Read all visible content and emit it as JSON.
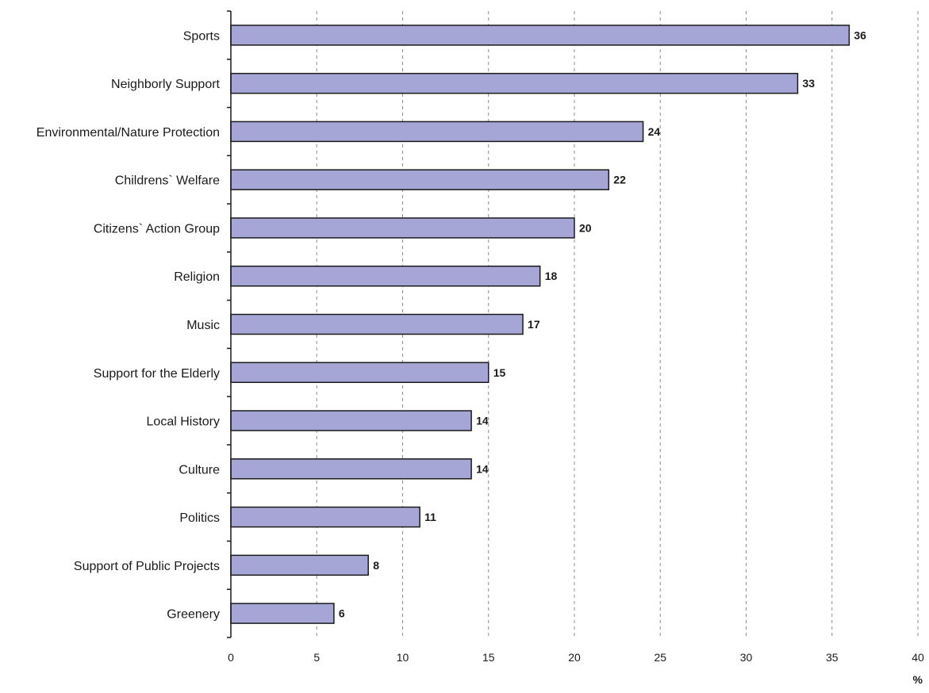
{
  "chart_data": {
    "type": "bar",
    "orientation": "horizontal",
    "categories": [
      "Sports",
      "Neighborly Support",
      "Environmental/Nature Protection",
      "Childrens` Welfare",
      "Citizens` Action Group",
      "Religion",
      "Music",
      "Support for the Elderly",
      "Local History",
      "Culture",
      "Politics",
      "Support of Public Projects",
      "Greenery"
    ],
    "values": [
      36,
      33,
      24,
      22,
      20,
      18,
      17,
      15,
      14,
      14,
      11,
      8,
      6
    ],
    "data_labels": [
      "36",
      "33",
      "24",
      "22",
      "20",
      "18",
      "17",
      "15",
      "14",
      "14",
      "11",
      "8",
      "6"
    ],
    "xlim": [
      0,
      40
    ],
    "x_ticks": [
      0,
      5,
      10,
      15,
      20,
      25,
      30,
      35,
      40
    ],
    "x_tick_labels": [
      "0",
      "5",
      "10",
      "15",
      "20",
      "25",
      "30",
      "35",
      "40"
    ],
    "xlabel": "%",
    "grid": "vertical-dashed",
    "legend": "none",
    "colors": {
      "bar_fill": "#a6a6d6",
      "bar_stroke": "#1a1a1a",
      "grid": "#8c8c8c",
      "axis": "#1a1a1a"
    }
  }
}
